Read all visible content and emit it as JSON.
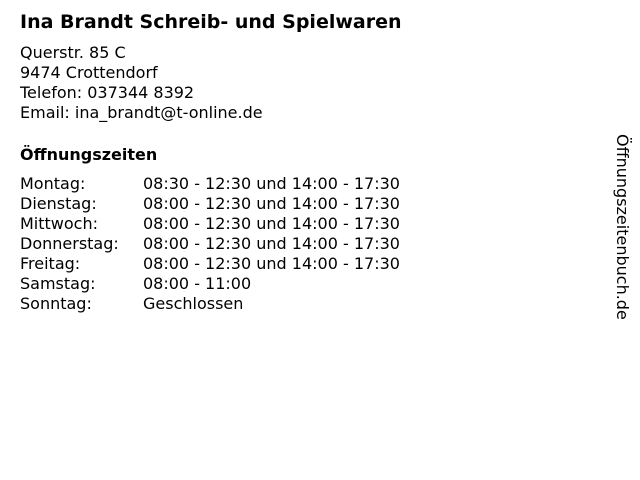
{
  "title": "Ina Brandt Schreib- und Spielwaren",
  "address": {
    "street": "Querstr. 85 C",
    "city": "9474 Crottendorf",
    "phone": "Telefon: 037344 8392",
    "email": "Email: ina_brandt@t-online.de"
  },
  "hours_heading": "Öffnungszeiten",
  "hours": [
    {
      "day": "Montag:",
      "time": "08:30 - 12:30 und 14:00 - 17:30"
    },
    {
      "day": "Dienstag:",
      "time": "08:00 - 12:30 und 14:00 - 17:30"
    },
    {
      "day": "Mittwoch:",
      "time": "08:00 - 12:30 und 14:00 - 17:30"
    },
    {
      "day": "Donnerstag:",
      "time": "08:00 - 12:30 und 14:00 - 17:30"
    },
    {
      "day": "Freitag:",
      "time": "08:00 - 12:30 und 14:00 - 17:30"
    },
    {
      "day": "Samstag:",
      "time": "08:00 - 11:00"
    },
    {
      "day": "Sonntag:",
      "time": "Geschlossen"
    }
  ],
  "watermark": "Öffnungszeitenbuch.de"
}
